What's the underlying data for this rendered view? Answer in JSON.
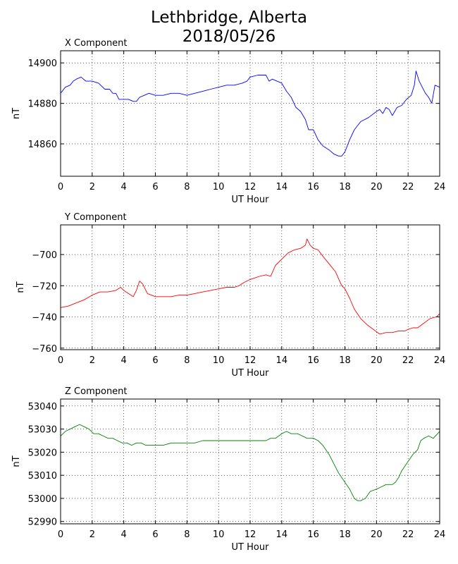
{
  "figure": {
    "title_line1": "Lethbridge, Alberta",
    "title_line2": "2018/05/26"
  },
  "chart_data": [
    {
      "type": "line",
      "title": "X Component",
      "xlabel": "UT Hour",
      "ylabel": "nT",
      "xlim": [
        0,
        24
      ],
      "ylim": [
        14844,
        14906
      ],
      "xticks": [
        0,
        2,
        4,
        6,
        8,
        10,
        12,
        14,
        16,
        18,
        20,
        22,
        24
      ],
      "yticks": [
        14860,
        14880,
        14900
      ],
      "grid": true,
      "series": [
        {
          "color": "#0000ff",
          "x": [
            0,
            0.3,
            0.6,
            0.8,
            1.0,
            1.3,
            1.6,
            2.0,
            2.4,
            2.8,
            3.1,
            3.3,
            3.5,
            3.7,
            4.0,
            4.3,
            4.6,
            4.8,
            5.0,
            5.3,
            5.6,
            6.0,
            6.5,
            7.0,
            7.5,
            8.0,
            8.5,
            9.0,
            9.5,
            10.0,
            10.5,
            11.0,
            11.5,
            11.8,
            12.0,
            12.5,
            13.0,
            13.2,
            13.4,
            13.7,
            14.0,
            14.3,
            14.6,
            14.9,
            15.2,
            15.5,
            15.7,
            16.0,
            16.3,
            16.6,
            17.0,
            17.3,
            17.6,
            17.8,
            18.0,
            18.3,
            18.6,
            19.0,
            19.5,
            20.0,
            20.2,
            20.4,
            20.6,
            20.8,
            21.0,
            21.3,
            21.6,
            21.9,
            22.2,
            22.4,
            22.5,
            22.7,
            22.9,
            23.1,
            23.3,
            23.5,
            23.7,
            24.0
          ],
          "y": [
            14885,
            14888,
            14889,
            14891,
            14892,
            14893,
            14891,
            14891,
            14890,
            14887,
            14887,
            14885,
            14885,
            14882,
            14882,
            14882,
            14881,
            14881,
            14883,
            14884,
            14885,
            14884,
            14884,
            14885,
            14885,
            14884,
            14885,
            14886,
            14887,
            14888,
            14889,
            14889,
            14890,
            14891,
            14893,
            14894,
            14894,
            14891,
            14892,
            14891,
            14890,
            14886,
            14883,
            14878,
            14876,
            14872,
            14867,
            14867,
            14862,
            14859,
            14857,
            14855,
            14854,
            14854,
            14856,
            14862,
            14867,
            14871,
            14873,
            14876,
            14877,
            14875,
            14878,
            14877,
            14874,
            14878,
            14879,
            14882,
            14884,
            14889,
            14896,
            14891,
            14888,
            14885,
            14883,
            14880,
            14889,
            14888
          ]
        }
      ]
    },
    {
      "type": "line",
      "title": "Y Component",
      "xlabel": "UT Hour",
      "ylabel": "nT",
      "xlim": [
        0,
        24
      ],
      "ylim": [
        -761,
        -681
      ],
      "xticks": [
        0,
        2,
        4,
        6,
        8,
        10,
        12,
        14,
        16,
        18,
        20,
        22,
        24
      ],
      "yticks": [
        -760,
        -740,
        -720,
        -700
      ],
      "grid": true,
      "series": [
        {
          "color": "#ff0000",
          "x": [
            0,
            0.5,
            1.0,
            1.5,
            2.0,
            2.5,
            3.0,
            3.5,
            3.8,
            4.0,
            4.3,
            4.6,
            4.8,
            5.0,
            5.2,
            5.5,
            6.0,
            6.5,
            7.0,
            7.5,
            8.0,
            8.5,
            9.0,
            9.5,
            10.0,
            10.5,
            10.8,
            11.0,
            11.3,
            11.6,
            12.0,
            12.3,
            12.6,
            13.0,
            13.3,
            13.6,
            14.0,
            14.4,
            14.8,
            15.2,
            15.5,
            15.6,
            15.8,
            16.0,
            16.3,
            16.6,
            17.0,
            17.4,
            17.8,
            18.0,
            18.3,
            18.6,
            19.0,
            19.4,
            19.8,
            20.2,
            20.6,
            21.0,
            21.4,
            21.8,
            22.0,
            22.3,
            22.6,
            23.0,
            23.4,
            23.8,
            24.0
          ],
          "y": [
            -734,
            -733,
            -731,
            -729,
            -726,
            -724,
            -724,
            -723,
            -721,
            -723,
            -725,
            -727,
            -723,
            -717,
            -719,
            -725,
            -727,
            -727,
            -727,
            -726,
            -726,
            -725,
            -724,
            -723,
            -722,
            -721,
            -721,
            -721,
            -720,
            -718,
            -716,
            -715,
            -714,
            -713,
            -714,
            -707,
            -703,
            -699,
            -697,
            -696,
            -694,
            -690,
            -694,
            -696,
            -697,
            -701,
            -706,
            -711,
            -720,
            -722,
            -728,
            -735,
            -741,
            -745,
            -748,
            -751,
            -750,
            -750,
            -749,
            -749,
            -748,
            -747,
            -747,
            -744,
            -741,
            -740,
            -738
          ]
        }
      ]
    },
    {
      "type": "line",
      "title": "Z Component",
      "xlabel": "UT Hour",
      "ylabel": "nT",
      "xlim": [
        0,
        24
      ],
      "ylim": [
        52989,
        53043
      ],
      "xticks": [
        0,
        2,
        4,
        6,
        8,
        10,
        12,
        14,
        16,
        18,
        20,
        22,
        24
      ],
      "yticks": [
        52990,
        53000,
        53010,
        53020,
        53030,
        53040
      ],
      "grid": true,
      "series": [
        {
          "color": "#008000",
          "x": [
            0,
            0.3,
            0.6,
            0.9,
            1.2,
            1.5,
            1.8,
            2.1,
            2.4,
            2.7,
            3.0,
            3.3,
            3.6,
            3.9,
            4.2,
            4.5,
            4.8,
            5.1,
            5.4,
            5.7,
            6.0,
            6.5,
            7.0,
            7.5,
            8.0,
            8.5,
            9.0,
            9.5,
            10.0,
            10.5,
            11.0,
            11.5,
            12.0,
            12.5,
            13.0,
            13.3,
            13.6,
            14.0,
            14.3,
            14.6,
            15.0,
            15.3,
            15.6,
            16.0,
            16.3,
            16.6,
            17.0,
            17.3,
            17.6,
            18.0,
            18.3,
            18.6,
            18.8,
            19.0,
            19.3,
            19.6,
            20.0,
            20.3,
            20.6,
            21.0,
            21.2,
            21.4,
            21.6,
            21.8,
            22.0,
            22.3,
            22.6,
            22.8,
            23.0,
            23.3,
            23.6,
            24.0
          ],
          "y": [
            53027,
            53029,
            53030,
            53031,
            53032,
            53031,
            53030,
            53028,
            53028,
            53027,
            53026,
            53026,
            53025,
            53024,
            53024,
            53023,
            53024,
            53024,
            53023,
            53023,
            53023,
            53023,
            53024,
            53024,
            53024,
            53024,
            53025,
            53025,
            53025,
            53025,
            53025,
            53025,
            53025,
            53025,
            53025,
            53026,
            53026,
            53028,
            53029,
            53028,
            53028,
            53027,
            53026,
            53026,
            53025,
            53023,
            53019,
            53015,
            53011,
            53007,
            53004,
            53000,
            52999,
            52999,
            53000,
            53003,
            53004,
            53005,
            53006,
            53006,
            53007,
            53009,
            53012,
            53014,
            53016,
            53019,
            53021,
            53025,
            53026,
            53027,
            53026,
            53029
          ]
        }
      ]
    }
  ]
}
